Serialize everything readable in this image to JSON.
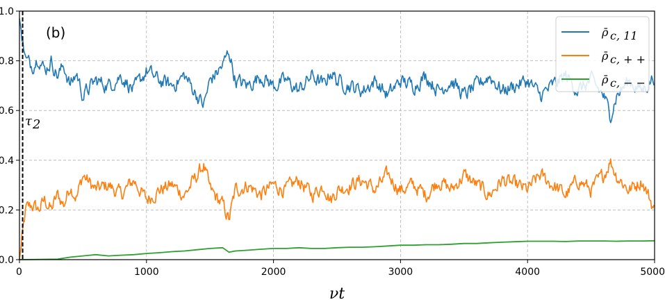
{
  "chart_data": {
    "type": "line",
    "panel_label": "(b)",
    "xlabel": "νt",
    "ylabel": "",
    "xlim": [
      0,
      5000
    ],
    "ylim": [
      0.0,
      1.0
    ],
    "x_ticks": [
      0,
      1000,
      2000,
      3000,
      4000,
      5000
    ],
    "x_tick_labels": [
      "0",
      "1000",
      "2000",
      "3000",
      "4000",
      "5000"
    ],
    "y_ticks": [
      0.0,
      0.2,
      0.4,
      0.6,
      0.8,
      1.0
    ],
    "y_tick_labels": [
      "0.0",
      "0.2",
      "0.4",
      "0.6",
      "0.8",
      "1.0"
    ],
    "grid": true,
    "legend_position": "top-right",
    "annotation": {
      "label": "τ",
      "subscript": "2",
      "x": 25
    },
    "series": [
      {
        "name": "ρ̄c, 11",
        "legend_main": "ρ̄",
        "legend_sub": "c, 11",
        "color": "#1f77b4",
        "x": [
          0,
          50,
          100,
          150,
          200,
          250,
          300,
          350,
          400,
          450,
          500,
          600,
          700,
          800,
          900,
          1000,
          1100,
          1200,
          1300,
          1400,
          1450,
          1500,
          1600,
          1650,
          1700,
          1800,
          1900,
          2000,
          2100,
          2200,
          2300,
          2400,
          2450,
          2500,
          2600,
          2700,
          2800,
          2900,
          3000,
          3100,
          3200,
          3300,
          3400,
          3500,
          3600,
          3700,
          3800,
          3900,
          4000,
          4100,
          4200,
          4300,
          4400,
          4500,
          4600,
          4650,
          4700,
          4800,
          4900,
          5000
        ],
        "y": [
          0.97,
          0.8,
          0.78,
          0.82,
          0.76,
          0.8,
          0.74,
          0.78,
          0.7,
          0.75,
          0.66,
          0.72,
          0.7,
          0.74,
          0.68,
          0.76,
          0.72,
          0.7,
          0.74,
          0.66,
          0.62,
          0.72,
          0.78,
          0.84,
          0.72,
          0.7,
          0.74,
          0.7,
          0.72,
          0.68,
          0.74,
          0.7,
          0.76,
          0.72,
          0.7,
          0.68,
          0.72,
          0.66,
          0.72,
          0.7,
          0.74,
          0.68,
          0.72,
          0.66,
          0.7,
          0.74,
          0.68,
          0.7,
          0.72,
          0.66,
          0.7,
          0.74,
          0.68,
          0.72,
          0.66,
          0.58,
          0.66,
          0.72,
          0.68,
          0.74
        ]
      },
      {
        "name": "ρ̄c, ++",
        "legend_main": "ρ̄",
        "legend_sub": "c, + +",
        "color": "#ff7f0e",
        "x": [
          0,
          50,
          100,
          150,
          200,
          250,
          300,
          350,
          400,
          450,
          500,
          600,
          700,
          800,
          900,
          1000,
          1100,
          1200,
          1300,
          1400,
          1450,
          1500,
          1600,
          1650,
          1700,
          1800,
          1900,
          2000,
          2100,
          2200,
          2300,
          2400,
          2450,
          2500,
          2600,
          2700,
          2800,
          2900,
          3000,
          3100,
          3200,
          3300,
          3400,
          3500,
          3600,
          3700,
          3800,
          3900,
          4000,
          4100,
          4200,
          4300,
          4400,
          4500,
          4600,
          4650,
          4700,
          4800,
          4900,
          5000
        ],
        "y": [
          0.0,
          0.2,
          0.22,
          0.2,
          0.24,
          0.2,
          0.26,
          0.22,
          0.3,
          0.25,
          0.34,
          0.28,
          0.3,
          0.26,
          0.32,
          0.24,
          0.28,
          0.3,
          0.26,
          0.34,
          0.38,
          0.28,
          0.22,
          0.16,
          0.28,
          0.3,
          0.26,
          0.3,
          0.28,
          0.32,
          0.26,
          0.3,
          0.24,
          0.28,
          0.3,
          0.32,
          0.28,
          0.34,
          0.28,
          0.3,
          0.26,
          0.32,
          0.28,
          0.34,
          0.3,
          0.26,
          0.32,
          0.3,
          0.28,
          0.34,
          0.3,
          0.26,
          0.32,
          0.28,
          0.34,
          0.4,
          0.34,
          0.28,
          0.32,
          0.2
        ]
      },
      {
        "name": "ρ̄c, −−",
        "legend_main": "ρ̄",
        "legend_sub": "c, − −",
        "color": "#2ca02c",
        "x": [
          0,
          300,
          400,
          500,
          600,
          700,
          800,
          900,
          1000,
          1100,
          1200,
          1300,
          1400,
          1500,
          1600,
          1650,
          1700,
          1800,
          1900,
          2000,
          2100,
          2200,
          2300,
          2400,
          2500,
          2600,
          2700,
          2800,
          2900,
          3000,
          3100,
          3200,
          3300,
          3400,
          3500,
          3600,
          3700,
          3800,
          3900,
          4000,
          4100,
          4200,
          4300,
          4400,
          4500,
          4600,
          4700,
          4800,
          4900,
          5000
        ],
        "y": [
          0.0,
          0.002,
          0.01,
          0.015,
          0.02,
          0.015,
          0.018,
          0.02,
          0.025,
          0.028,
          0.032,
          0.035,
          0.04,
          0.045,
          0.048,
          0.03,
          0.035,
          0.038,
          0.042,
          0.045,
          0.045,
          0.048,
          0.045,
          0.045,
          0.048,
          0.05,
          0.05,
          0.052,
          0.055,
          0.058,
          0.058,
          0.06,
          0.06,
          0.062,
          0.065,
          0.065,
          0.068,
          0.07,
          0.072,
          0.074,
          0.074,
          0.074,
          0.073,
          0.075,
          0.075,
          0.075,
          0.074,
          0.075,
          0.075,
          0.076
        ]
      }
    ]
  }
}
